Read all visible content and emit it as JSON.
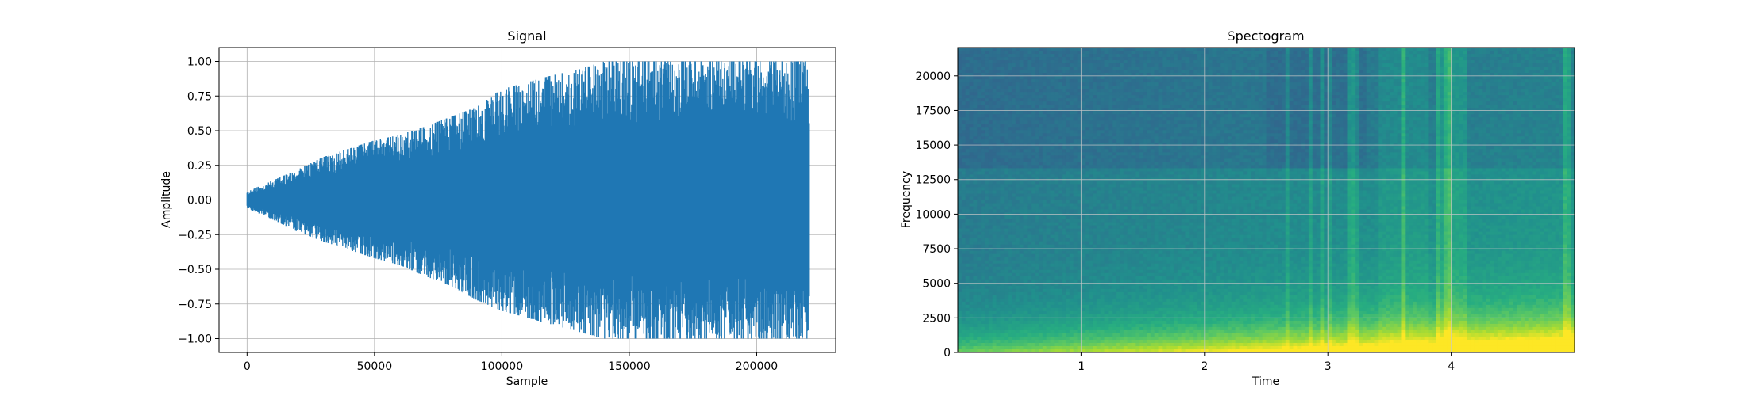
{
  "chart_data": [
    {
      "type": "line",
      "title": "Signal",
      "xlabel": "Sample",
      "ylabel": "Amplitude",
      "xlim": [
        -11000,
        231000
      ],
      "ylim": [
        -1.1,
        1.1
      ],
      "grid": true,
      "color": "#1f77b4",
      "x_ticks": [
        0,
        50000,
        100000,
        150000,
        200000
      ],
      "x_tick_labels": [
        "0",
        "50000",
        "100000",
        "150000",
        "200000"
      ],
      "y_ticks": [
        -1.0,
        -0.75,
        -0.5,
        -0.25,
        0.0,
        0.25,
        0.5,
        0.75,
        1.0
      ],
      "y_tick_labels": [
        "−1.00",
        "−0.75",
        "−0.50",
        "−0.25",
        "0.00",
        "0.25",
        "0.50",
        "0.75",
        "1.00"
      ],
      "series": [
        {
          "x": [
            0,
            10000,
            20000,
            30000,
            40000,
            50000,
            60000,
            70000,
            80000,
            90000,
            100000,
            110000,
            120000,
            130000,
            140000,
            150000,
            160000,
            170000,
            180000,
            190000,
            200000,
            210000,
            220500
          ],
          "upper": [
            0.06,
            0.14,
            0.22,
            0.31,
            0.37,
            0.43,
            0.47,
            0.53,
            0.6,
            0.67,
            0.8,
            0.85,
            0.9,
            0.94,
            1.0,
            1.0,
            1.0,
            1.0,
            1.0,
            1.0,
            1.0,
            1.0,
            1.0
          ],
          "lower": [
            -0.06,
            -0.14,
            -0.23,
            -0.3,
            -0.36,
            -0.42,
            -0.47,
            -0.55,
            -0.62,
            -0.72,
            -0.8,
            -0.85,
            -0.9,
            -0.95,
            -1.0,
            -1.0,
            -1.0,
            -1.0,
            -1.0,
            -1.0,
            -1.0,
            -1.0,
            -1.0
          ]
        }
      ]
    },
    {
      "type": "heatmap",
      "title": "Spectogram",
      "xlabel": "Time",
      "ylabel": "Frequency",
      "xlim": [
        0,
        5.0
      ],
      "ylim": [
        0,
        22050
      ],
      "grid": true,
      "colormap": "viridis",
      "x_ticks": [
        1,
        2,
        3,
        4
      ],
      "x_tick_labels": [
        "1",
        "2",
        "3",
        "4"
      ],
      "y_ticks": [
        0,
        2500,
        5000,
        7500,
        10000,
        12500,
        15000,
        17500,
        20000
      ],
      "y_tick_labels": [
        "0",
        "2500",
        "5000",
        "7500",
        "10000",
        "12500",
        "15000",
        "17500",
        "20000"
      ]
    }
  ]
}
